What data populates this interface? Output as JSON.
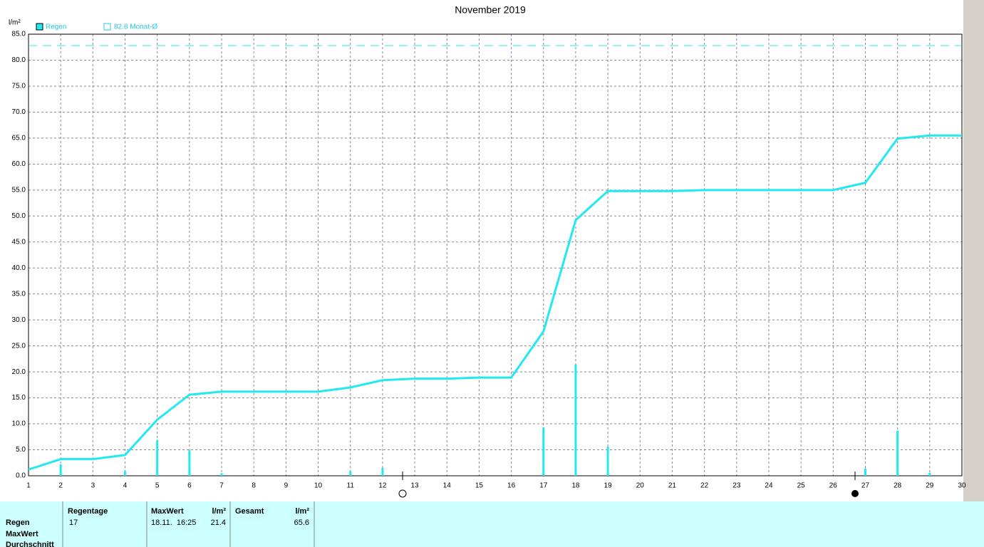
{
  "chart_data": {
    "type": "line",
    "title": "November 2019",
    "y_axis_label": "l/m²",
    "xlim": [
      1,
      30
    ],
    "xticks": [
      1,
      2,
      3,
      4,
      5,
      6,
      7,
      8,
      9,
      10,
      11,
      12,
      13,
      14,
      15,
      16,
      17,
      18,
      19,
      20,
      21,
      22,
      23,
      24,
      25,
      26,
      27,
      28,
      29,
      30
    ],
    "ylim": [
      0,
      85
    ],
    "yticks": [
      {
        "value": 0,
        "label": "0.0"
      },
      {
        "value": 5,
        "label": "5.0"
      },
      {
        "value": 10,
        "label": "10.0"
      },
      {
        "value": 15,
        "label": "15.0"
      },
      {
        "value": 20,
        "label": "20.0"
      },
      {
        "value": 25,
        "label": "25.0"
      },
      {
        "value": 30,
        "label": "30.0"
      },
      {
        "value": 35,
        "label": "35.0"
      },
      {
        "value": 40,
        "label": "40.0"
      },
      {
        "value": 45,
        "label": "45.0"
      },
      {
        "value": 50,
        "label": "50.0"
      },
      {
        "value": 55,
        "label": "55.0"
      },
      {
        "value": 60,
        "label": "60.0"
      },
      {
        "value": 65,
        "label": "65.0"
      },
      {
        "value": 70,
        "label": "70.0"
      },
      {
        "value": 75,
        "label": "75.0"
      },
      {
        "value": 80,
        "label": "80.0"
      },
      {
        "value": 85,
        "label": "85.0"
      }
    ],
    "grid": true,
    "series": [
      {
        "name": "Regen",
        "color": "#22e8f2",
        "x": [
          1,
          2,
          3,
          4,
          5,
          6,
          7,
          8,
          9,
          10,
          11,
          12,
          13,
          14,
          15,
          16,
          17,
          18,
          19,
          20,
          21,
          22,
          23,
          24,
          25,
          26,
          27,
          28,
          29,
          30
        ],
        "values": [
          1.2,
          3.2,
          3.2,
          4.0,
          10.8,
          15.6,
          16.2,
          16.2,
          16.2,
          16.2,
          17.0,
          18.4,
          18.7,
          18.7,
          18.9,
          18.9,
          27.8,
          49.2,
          54.8,
          54.8,
          54.8,
          55.0,
          55.0,
          55.0,
          55.0,
          55.0,
          56.4,
          64.9,
          65.5,
          65.5
        ]
      }
    ],
    "bars": {
      "color": "#22e8f2",
      "x": [
        2,
        4,
        5,
        6,
        7,
        11,
        12,
        17,
        18,
        19,
        27,
        28,
        29
      ],
      "values": [
        2.2,
        0.9,
        6.9,
        4.9,
        0.5,
        0.9,
        1.5,
        9.3,
        21.4,
        5.6,
        1.4,
        8.7,
        0.6
      ]
    },
    "reference_line": {
      "value": 82.8,
      "label": "82.8 Monat-Ø",
      "color": "#22e8f2"
    }
  },
  "summary": {
    "row_labels": [
      "Regen",
      "MaxWert",
      "Durchschnitt"
    ],
    "headers": [
      "Regentage",
      "MaxWert",
      "l/m²",
      "Gesamt",
      "l/m²"
    ],
    "values": [
      "17",
      "18.11.  16:25",
      "21.4",
      "65.6"
    ]
  }
}
